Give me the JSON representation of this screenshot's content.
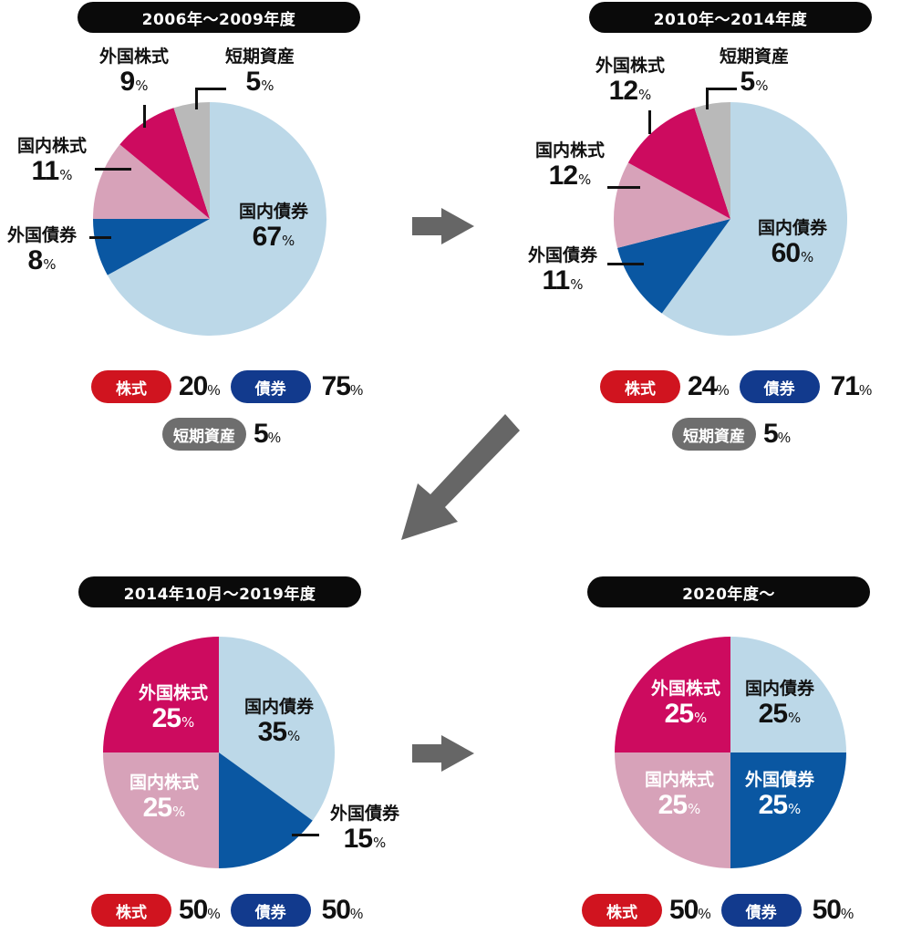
{
  "colors": {
    "domestic_bonds": "#bcd8e8",
    "foreign_bonds": "#0a57a2",
    "domestic_stocks": "#d7a2b9",
    "foreign_stocks": "#cd0b5f",
    "short_term": "#b9b9b9",
    "stock_pill": "#d0141f",
    "bond_pill": "#123a8d",
    "short_pill": "#6e6e6e",
    "arrow": "#666666"
  },
  "charts": [
    {
      "period": "2006年～2009年度",
      "labels": {
        "domestic_bonds": {
          "name": "国内債券",
          "value": "67",
          "unit": "%"
        },
        "foreign_bonds": {
          "name": "外国債券",
          "value": "8",
          "unit": "%"
        },
        "domestic_stocks": {
          "name": "国内株式",
          "value": "11",
          "unit": "%"
        },
        "foreign_stocks": {
          "name": "外国株式",
          "value": "9",
          "unit": "%"
        },
        "short_term": {
          "name": "短期資産",
          "value": "5",
          "unit": "%"
        }
      },
      "summary": {
        "stock_label": "株式",
        "stock_value": "20",
        "unit": "%",
        "bond_label": "債券",
        "bond_value": "75",
        "short_label": "短期資産",
        "short_value": "5"
      }
    },
    {
      "period": "2010年～2014年度",
      "labels": {
        "domestic_bonds": {
          "name": "国内債券",
          "value": "60",
          "unit": "%"
        },
        "foreign_bonds": {
          "name": "外国債券",
          "value": "11",
          "unit": "%"
        },
        "domestic_stocks": {
          "name": "国内株式",
          "value": "12",
          "unit": "%"
        },
        "foreign_stocks": {
          "name": "外国株式",
          "value": "12",
          "unit": "%"
        },
        "short_term": {
          "name": "短期資産",
          "value": "5",
          "unit": "%"
        }
      },
      "summary": {
        "stock_label": "株式",
        "stock_value": "24",
        "unit": "%",
        "bond_label": "債券",
        "bond_value": "71",
        "short_label": "短期資産",
        "short_value": "5"
      }
    },
    {
      "period": "2014年10月～2019年度",
      "labels": {
        "domestic_bonds": {
          "name": "国内債券",
          "value": "35",
          "unit": "%"
        },
        "foreign_bonds": {
          "name": "外国債券",
          "value": "15",
          "unit": "%"
        },
        "domestic_stocks": {
          "name": "国内株式",
          "value": "25",
          "unit": "%"
        },
        "foreign_stocks": {
          "name": "外国株式",
          "value": "25",
          "unit": "%"
        }
      },
      "summary": {
        "stock_label": "株式",
        "stock_value": "50",
        "unit": "%",
        "bond_label": "債券",
        "bond_value": "50"
      }
    },
    {
      "period": "2020年度～",
      "labels": {
        "domestic_bonds": {
          "name": "国内債券",
          "value": "25",
          "unit": "%"
        },
        "foreign_bonds": {
          "name": "外国債券",
          "value": "25",
          "unit": "%"
        },
        "domestic_stocks": {
          "name": "国内株式",
          "value": "25",
          "unit": "%"
        },
        "foreign_stocks": {
          "name": "外国株式",
          "value": "25",
          "unit": "%"
        }
      },
      "summary": {
        "stock_label": "株式",
        "stock_value": "50",
        "unit": "%",
        "bond_label": "債券",
        "bond_value": "50"
      }
    }
  ],
  "chart_data": [
    {
      "type": "pie",
      "title": "2006年～2009年度",
      "categories": [
        "国内債券",
        "外国債券",
        "国内株式",
        "外国株式",
        "短期資産"
      ],
      "values": [
        67,
        8,
        11,
        9,
        5
      ],
      "unit": "%",
      "start_angle": "12 o'clock, clockwise",
      "totals": {
        "株式": 20,
        "債券": 75,
        "短期資産": 5
      }
    },
    {
      "type": "pie",
      "title": "2010年～2014年度",
      "categories": [
        "国内債券",
        "外国債券",
        "国内株式",
        "外国株式",
        "短期資産"
      ],
      "values": [
        60,
        11,
        12,
        12,
        5
      ],
      "unit": "%",
      "start_angle": "12 o'clock, clockwise",
      "totals": {
        "株式": 24,
        "債券": 71,
        "短期資産": 5
      }
    },
    {
      "type": "pie",
      "title": "2014年10月～2019年度",
      "categories": [
        "国内債券",
        "外国債券",
        "国内株式",
        "外国株式"
      ],
      "values": [
        35,
        15,
        25,
        25
      ],
      "unit": "%",
      "start_angle": "12 o'clock, clockwise",
      "totals": {
        "株式": 50,
        "債券": 50
      }
    },
    {
      "type": "pie",
      "title": "2020年度～",
      "categories": [
        "国内債券",
        "外国債券",
        "国内株式",
        "外国株式"
      ],
      "values": [
        25,
        25,
        25,
        25
      ],
      "unit": "%",
      "start_angle": "12 o'clock, clockwise",
      "totals": {
        "株式": 50,
        "債券": 50
      }
    }
  ]
}
